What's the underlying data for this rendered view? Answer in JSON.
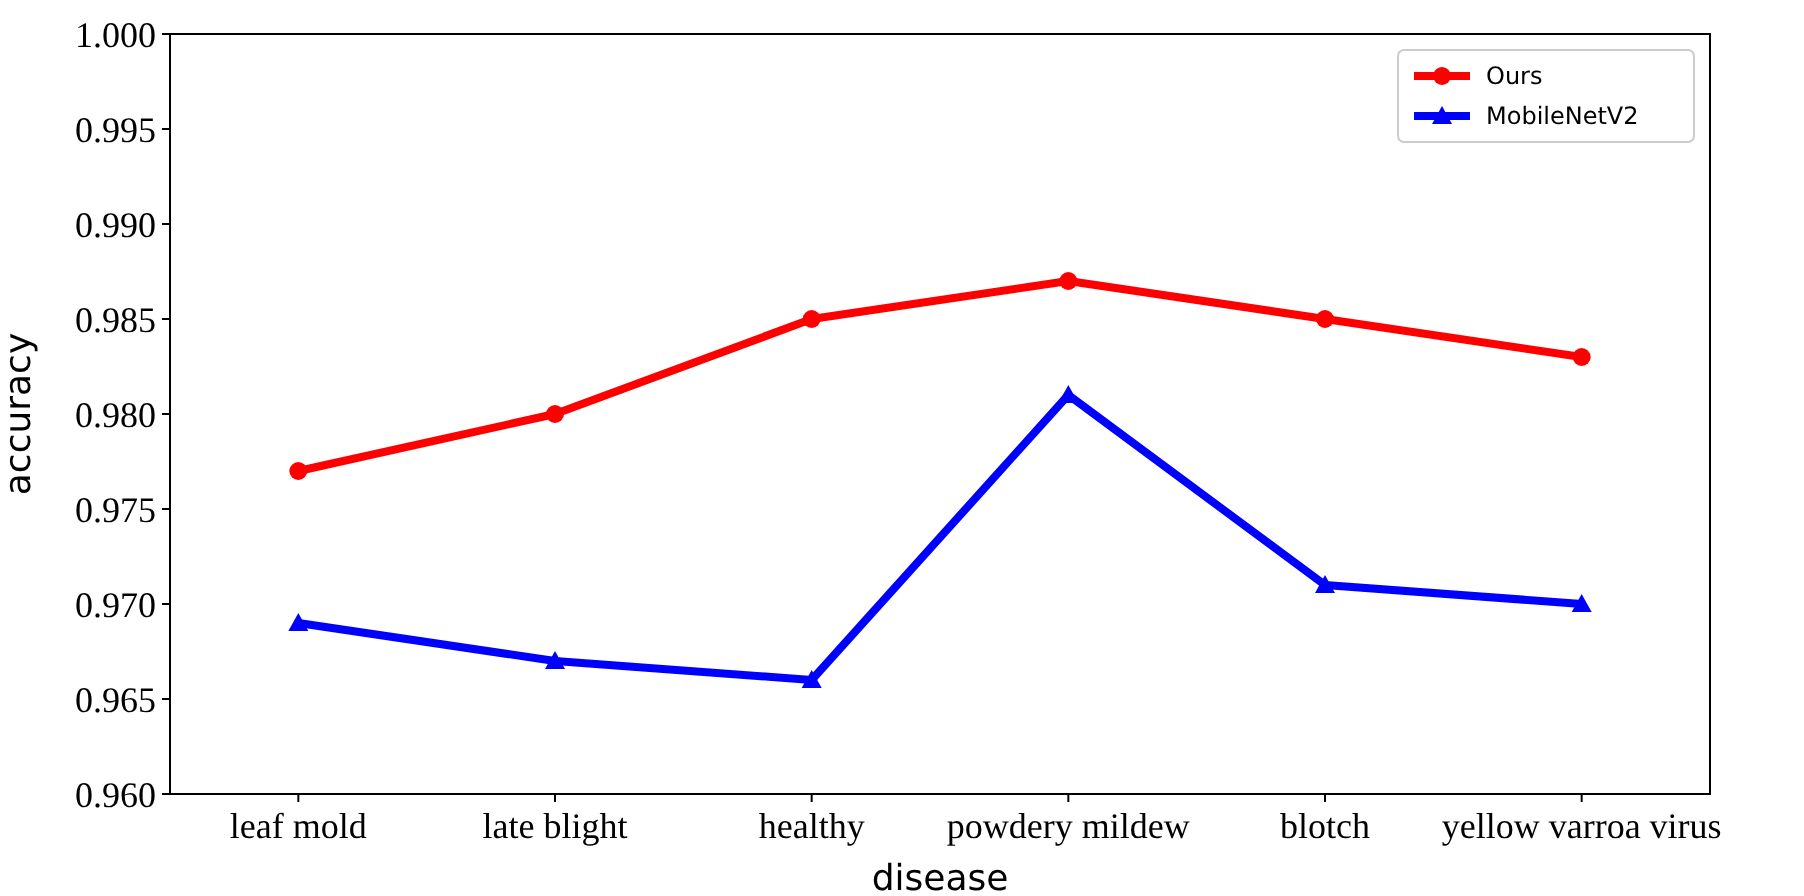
{
  "chart_data": {
    "type": "line",
    "xlabel": "disease",
    "ylabel": "accuracy",
    "categories": [
      "leaf mold",
      "late blight",
      "healthy",
      "powdery mildew",
      "blotch",
      "yellow varroa virus"
    ],
    "series": [
      {
        "name": "Ours",
        "color": "#ff0000",
        "marker": "circle",
        "values": [
          0.977,
          0.98,
          0.985,
          0.987,
          0.985,
          0.983
        ]
      },
      {
        "name": "MobileNetV2",
        "color": "#0000ff",
        "marker": "triangle",
        "values": [
          0.969,
          0.967,
          0.966,
          0.981,
          0.971,
          0.97
        ]
      }
    ],
    "ylim": [
      0.96,
      1.0
    ],
    "yticks": [
      {
        "value": 0.96,
        "label": "0.960"
      },
      {
        "value": 0.965,
        "label": "0.965"
      },
      {
        "value": 0.97,
        "label": "0.970"
      },
      {
        "value": 0.975,
        "label": "0.975"
      },
      {
        "value": 0.98,
        "label": "0.980"
      },
      {
        "value": 0.985,
        "label": "0.985"
      },
      {
        "value": 0.99,
        "label": "0.990"
      },
      {
        "value": 0.995,
        "label": "0.995"
      },
      {
        "value": 1.0,
        "label": "1.000"
      }
    ],
    "grid": false,
    "legend": "top right",
    "line_style": "solid"
  }
}
